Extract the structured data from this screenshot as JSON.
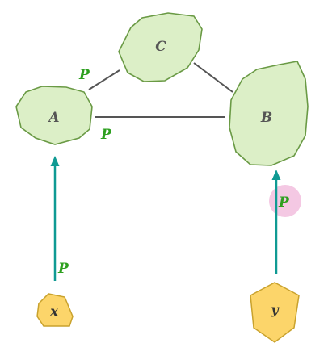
{
  "nodes": {
    "a": {
      "label": "A"
    },
    "b": {
      "label": "B"
    },
    "c": {
      "label": "C"
    },
    "x": {
      "label": "x"
    },
    "y": {
      "label": "y"
    }
  },
  "edge_labels": {
    "a_c": "P",
    "a_b": "P",
    "x_a": "P",
    "y_b": "P"
  },
  "colors": {
    "node_fill": "#dcefc7",
    "node_stroke": "#6a9a45",
    "input_fill": "#fcd56a",
    "input_stroke": "#c9a22d",
    "arrow": "#0f9a93",
    "edge": "#555555",
    "p_label": "#2ea020",
    "highlight": "#f0b6d9"
  }
}
